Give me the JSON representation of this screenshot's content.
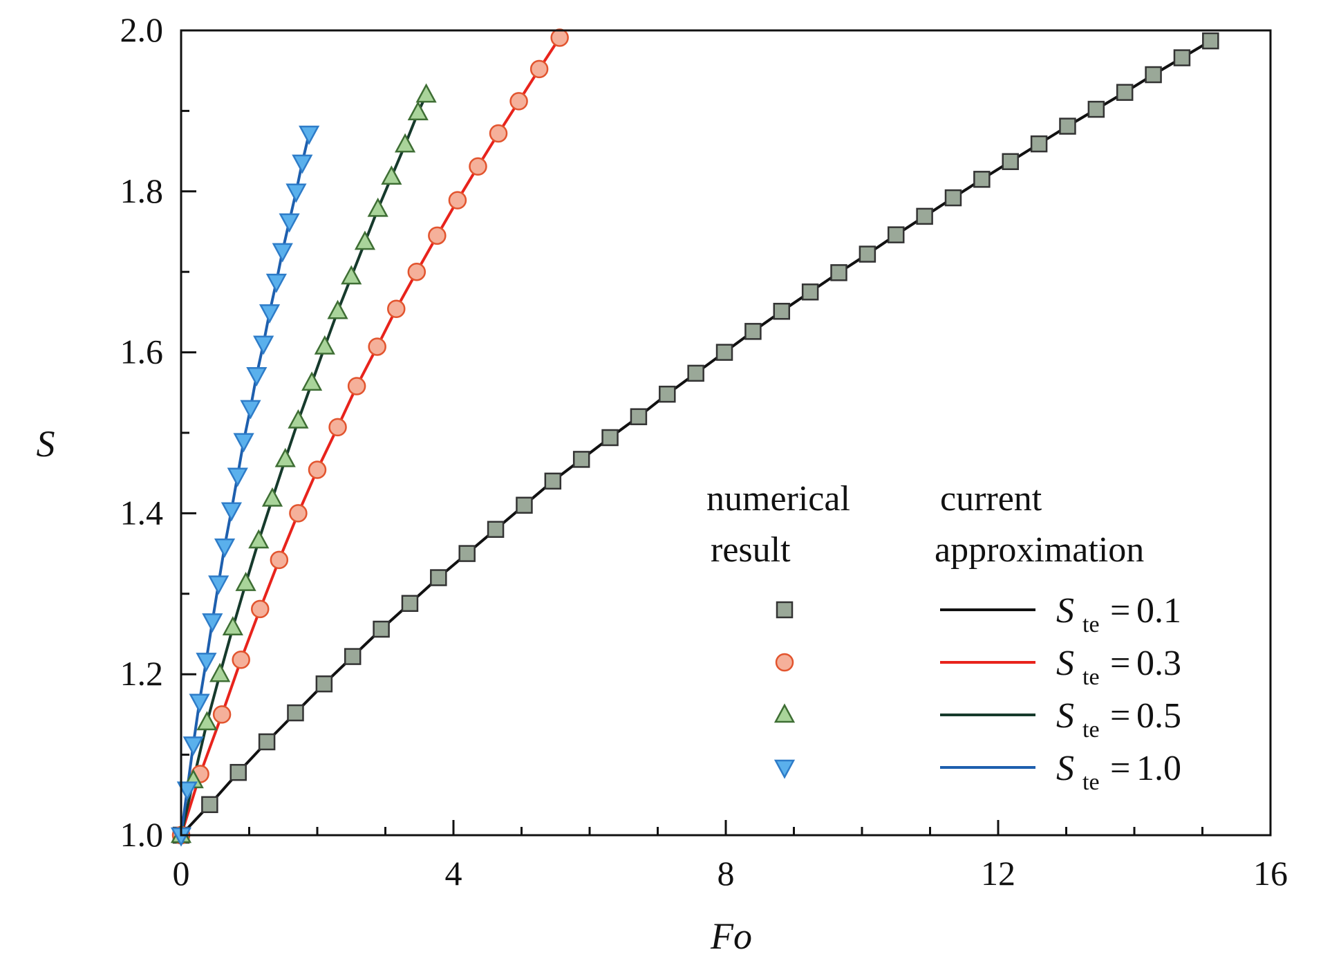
{
  "chart_data": {
    "type": "line",
    "xlabel": "Fo",
    "ylabel": "S",
    "xlim": [
      0,
      16
    ],
    "ylim": [
      1.0,
      2.0
    ],
    "xticks": [
      0,
      4,
      8,
      12,
      16
    ],
    "yticks": [
      1.0,
      1.2,
      1.4,
      1.6,
      1.8,
      2.0
    ],
    "xtick_labels": [
      "0",
      "4",
      "8",
      "12",
      "16"
    ],
    "ytick_labels": [
      "1.0",
      "1.2",
      "1.4",
      "1.6",
      "1.8",
      "2.0"
    ],
    "grid": false,
    "legend": {
      "placement": "bottom-right",
      "marker_header": [
        "numerical",
        "result"
      ],
      "line_header": [
        "current",
        "approximation"
      ],
      "symbol": "S",
      "subscript": "te",
      "equals": "="
    },
    "series": [
      {
        "ste": "0.1",
        "line_color": "#111111",
        "marker": "square",
        "marker_fill": "#9aa898",
        "marker_edge": "#333333",
        "x": [
          0,
          0.42,
          0.84,
          1.26,
          1.68,
          2.1,
          2.52,
          2.94,
          3.36,
          3.78,
          4.2,
          4.62,
          5.04,
          5.46,
          5.88,
          6.3,
          6.72,
          7.14,
          7.56,
          7.98,
          8.4,
          8.82,
          9.24,
          9.66,
          10.08,
          10.5,
          10.92,
          11.34,
          11.76,
          12.18,
          12.6,
          13.02,
          13.44,
          13.86,
          14.28,
          14.7,
          15.12
        ],
        "y": [
          1.0,
          1.038,
          1.078,
          1.116,
          1.152,
          1.188,
          1.222,
          1.256,
          1.288,
          1.32,
          1.35,
          1.38,
          1.41,
          1.44,
          1.467,
          1.494,
          1.52,
          1.548,
          1.574,
          1.6,
          1.626,
          1.651,
          1.675,
          1.699,
          1.722,
          1.746,
          1.769,
          1.792,
          1.815,
          1.837,
          1.859,
          1.881,
          1.902,
          1.923,
          1.945,
          1.966,
          1.987
        ]
      },
      {
        "ste": "0.3",
        "line_color": "#e8231c",
        "marker": "circle",
        "marker_fill": "#f5b09a",
        "marker_edge": "#e2542e",
        "x": [
          0,
          0.28,
          0.6,
          0.88,
          1.16,
          1.44,
          1.72,
          2.0,
          2.3,
          2.58,
          2.88,
          3.16,
          3.46,
          3.76,
          4.06,
          4.36,
          4.66,
          4.96,
          5.26,
          5.56
        ],
        "y": [
          1.0,
          1.076,
          1.15,
          1.218,
          1.281,
          1.342,
          1.4,
          1.454,
          1.507,
          1.558,
          1.607,
          1.654,
          1.7,
          1.745,
          1.789,
          1.831,
          1.872,
          1.912,
          1.952,
          1.991
        ]
      },
      {
        "ste": "0.5",
        "line_color": "#163a2c",
        "marker": "triangle-up",
        "marker_fill": "#a9d49a",
        "marker_edge": "#3e6e34",
        "x": [
          0,
          0.18,
          0.38,
          0.57,
          0.76,
          0.95,
          1.14,
          1.34,
          1.53,
          1.72,
          1.92,
          2.11,
          2.3,
          2.5,
          2.7,
          2.89,
          3.09,
          3.29,
          3.48,
          3.6
        ],
        "y": [
          1.0,
          1.068,
          1.14,
          1.2,
          1.258,
          1.313,
          1.366,
          1.418,
          1.467,
          1.515,
          1.562,
          1.607,
          1.651,
          1.694,
          1.737,
          1.778,
          1.818,
          1.858,
          1.898,
          1.92
        ]
      },
      {
        "ste": "1.0",
        "line_color": "#1e5fae",
        "marker": "triangle-down",
        "marker_fill": "#5ab0ec",
        "marker_edge": "#2e7cc8",
        "x": [
          0,
          0.09,
          0.18,
          0.27,
          0.37,
          0.46,
          0.55,
          0.64,
          0.74,
          0.83,
          0.92,
          1.02,
          1.11,
          1.21,
          1.3,
          1.4,
          1.49,
          1.59,
          1.69,
          1.78,
          1.88
        ],
        "y": [
          1.0,
          1.057,
          1.113,
          1.166,
          1.217,
          1.266,
          1.313,
          1.359,
          1.404,
          1.447,
          1.49,
          1.531,
          1.572,
          1.611,
          1.65,
          1.688,
          1.726,
          1.763,
          1.8,
          1.836,
          1.872
        ]
      }
    ]
  }
}
